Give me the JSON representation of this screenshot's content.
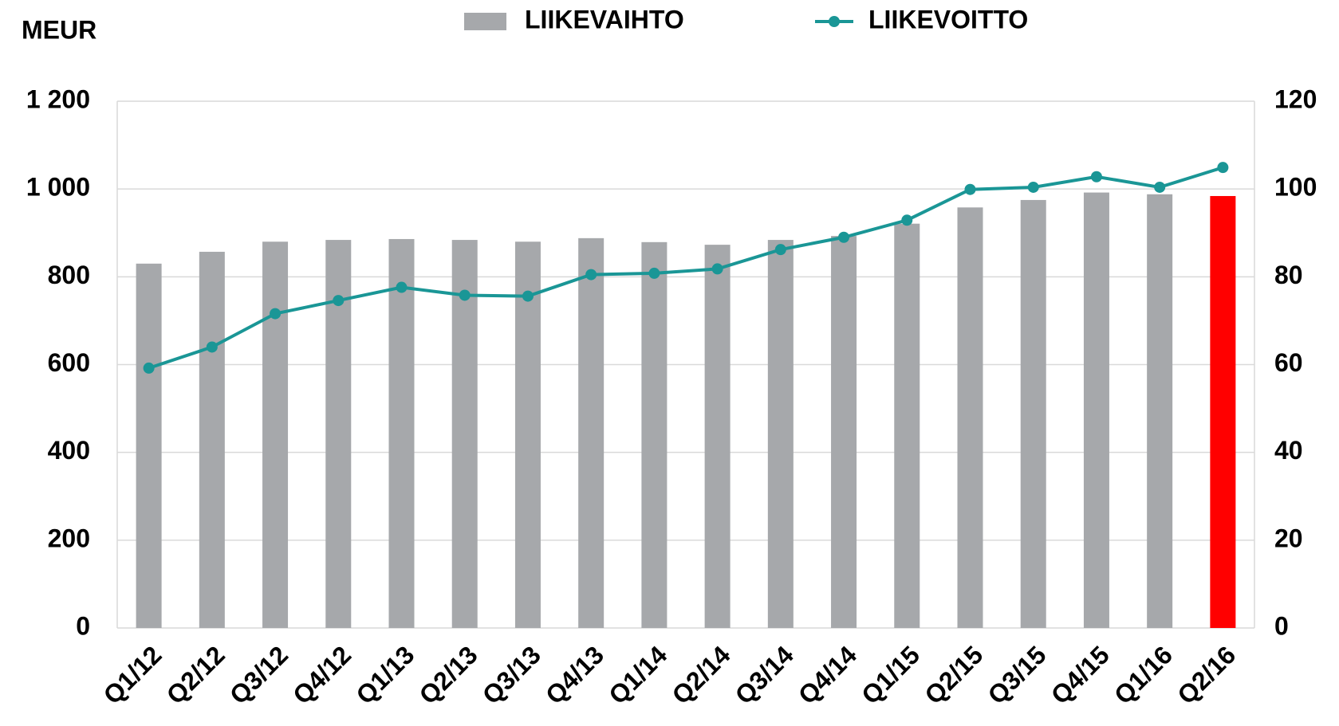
{
  "chart_data": {
    "type": "bar_line",
    "y_label": "MEUR",
    "categories": [
      "Q1/12",
      "Q2/12",
      "Q3/12",
      "Q4/12",
      "Q1/13",
      "Q2/13",
      "Q3/13",
      "Q4/13",
      "Q1/14",
      "Q2/14",
      "Q3/14",
      "Q4/14",
      "Q1/15",
      "Q2/15",
      "Q3/15",
      "Q4/15",
      "Q1/16",
      "Q2/16"
    ],
    "series": [
      {
        "name": "LIIKEVAIHTO",
        "type": "bar",
        "color": "#a6a8ab",
        "colors": [
          "#a6a8ab",
          "#a6a8ab",
          "#a6a8ab",
          "#a6a8ab",
          "#a6a8ab",
          "#a6a8ab",
          "#a6a8ab",
          "#a6a8ab",
          "#a6a8ab",
          "#a6a8ab",
          "#a6a8ab",
          "#a6a8ab",
          "#a6a8ab",
          "#a6a8ab",
          "#a6a8ab",
          "#a6a8ab",
          "#a6a8ab",
          "#ff0000"
        ],
        "values": [
          830,
          857,
          880,
          884,
          886,
          884,
          880,
          888,
          879,
          873,
          884,
          893,
          921,
          958,
          975,
          992,
          988,
          984
        ]
      },
      {
        "name": "LIIKEVOITTO",
        "type": "line",
        "axis": "y2",
        "color": "#1a9696",
        "values": [
          59.2,
          64,
          71.6,
          74.6,
          77.6,
          75.8,
          75.6,
          80.5,
          80.8,
          81.8,
          86.2,
          89,
          92.9,
          99.9,
          100.4,
          102.8,
          100.4,
          104.9
        ]
      }
    ],
    "ylim": [
      0,
      1200
    ],
    "yticks": [
      0,
      200,
      400,
      600,
      800,
      {
        "value": 1000,
        "label": "1 000"
      },
      {
        "value": 1200,
        "label": "1 200"
      }
    ],
    "y2lim": [
      0,
      120
    ],
    "y2ticks": [
      0,
      20,
      40,
      60,
      80,
      100,
      120
    ],
    "grid": true
  }
}
